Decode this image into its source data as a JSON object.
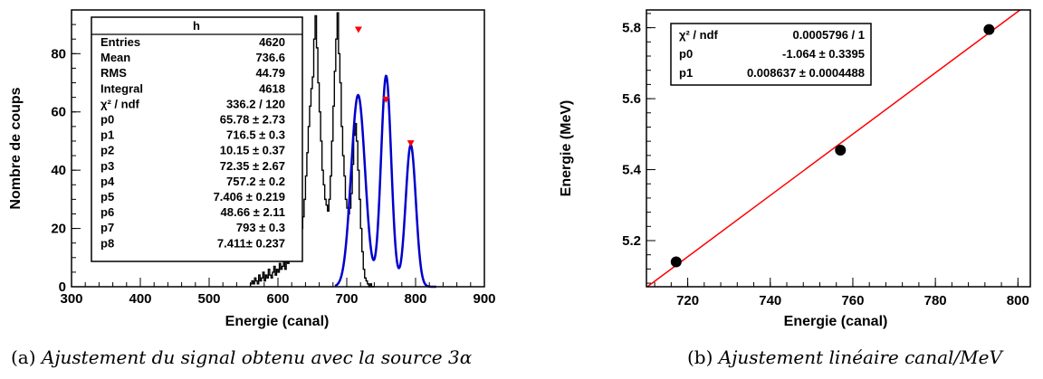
{
  "chart_data": [
    {
      "type": "line",
      "xlabel": "Energie (canal)",
      "ylabel": "Nombre de coups",
      "xlim": [
        300,
        900
      ],
      "ylim": [
        0,
        95
      ],
      "x_ticks": [
        300,
        400,
        500,
        600,
        700,
        800,
        900
      ],
      "y_ticks": [
        0,
        20,
        40,
        60,
        80
      ],
      "stats_box": {
        "title": "h",
        "rows": [
          {
            "label": "Entries",
            "value": "4620"
          },
          {
            "label": "Mean",
            "value": "736.6"
          },
          {
            "label": "RMS",
            "value": "44.79"
          },
          {
            "label": "Integral",
            "value": "4618"
          },
          {
            "label": "χ² / ndf",
            "value": "336.2 / 120"
          },
          {
            "label": "p0",
            "value": "65.78 ± 2.73"
          },
          {
            "label": "p1",
            "value": "716.5 ± 0.3"
          },
          {
            "label": "p2",
            "value": "10.15 ± 0.37"
          },
          {
            "label": "p3",
            "value": "72.35 ± 2.67"
          },
          {
            "label": "p4",
            "value": "757.2 ± 0.2"
          },
          {
            "label": "p5",
            "value": "7.406 ± 0.219"
          },
          {
            "label": "p6",
            "value": "48.66 ± 2.11"
          },
          {
            "label": "p7",
            "value": "793 ± 0.3"
          },
          {
            "label": "p8",
            "value": "7.411± 0.237"
          }
        ]
      },
      "fit": {
        "function": "gaus+gaus+gaus",
        "gaussians": [
          {
            "amp": 65.78,
            "mean": 716.5,
            "sigma": 10.15
          },
          {
            "amp": 72.35,
            "mean": 757.2,
            "sigma": 7.406
          },
          {
            "amp": 48.66,
            "mean": 793,
            "sigma": 7.411
          }
        ],
        "x_range": [
          683,
          830
        ],
        "color": "#0000cc"
      },
      "peak_markers": [
        {
          "x": 717,
          "y": 88
        },
        {
          "x": 757,
          "y": 64
        },
        {
          "x": 793,
          "y": 49
        }
      ],
      "histogram": {
        "bin_width": 2,
        "x_start": 560,
        "counts": [
          1,
          2,
          1,
          3,
          2,
          1,
          4,
          2,
          3,
          5,
          2,
          4,
          3,
          6,
          4,
          3,
          5,
          7,
          4,
          6,
          5,
          8,
          6,
          7,
          9,
          6,
          10,
          8,
          11,
          9,
          12,
          10,
          13,
          12,
          15,
          14,
          17,
          20,
          24,
          30,
          38,
          46,
          55,
          62,
          68,
          72,
          85,
          93,
          82,
          70,
          60,
          50,
          40,
          35,
          30,
          28,
          26,
          30,
          38,
          50,
          62,
          74,
          85,
          94,
          80,
          70,
          55,
          45,
          38,
          30,
          27,
          25,
          27,
          32,
          42,
          52,
          56,
          50,
          40,
          30,
          20,
          12,
          6,
          3,
          2,
          1,
          0,
          1,
          0,
          0
        ],
        "color": "#000000"
      },
      "marker_color": "#ff0000"
    },
    {
      "type": "scatter",
      "xlabel": "Energie (canal)",
      "ylabel": "Energie (MeV)",
      "xlim": [
        710,
        803
      ],
      "ylim": [
        5.07,
        5.85
      ],
      "x_ticks": [
        720,
        740,
        760,
        780,
        800
      ],
      "y_ticks": [
        5.2,
        5.4,
        5.6,
        5.8
      ],
      "x_tick_labels": [
        "720",
        "740",
        "760",
        "780",
        "800"
      ],
      "y_tick_labels": [
        "5.2",
        "5.4",
        "5.6",
        "5.8"
      ],
      "points": [
        {
          "x": 717.2,
          "y": 5.14
        },
        {
          "x": 757.0,
          "y": 5.455
        },
        {
          "x": 793.0,
          "y": 5.795
        }
      ],
      "fit_line": {
        "p0": -1.064,
        "p1": 0.008637,
        "color": "#ff0000"
      },
      "stats_box": {
        "rows": [
          {
            "label": "χ² / ndf",
            "value": "0.0005796 / 1"
          },
          {
            "label": "p0",
            "value": "-1.064 ± 0.3395"
          },
          {
            "label": "p1",
            "value": "0.008637 ± 0.0004488"
          }
        ]
      }
    }
  ],
  "captions": [
    {
      "label": "(a)",
      "text": "Ajustement du signal obtenu avec la source 3α"
    },
    {
      "label": "(b)",
      "text": "Ajustement linéaire canal/MeV"
    }
  ]
}
